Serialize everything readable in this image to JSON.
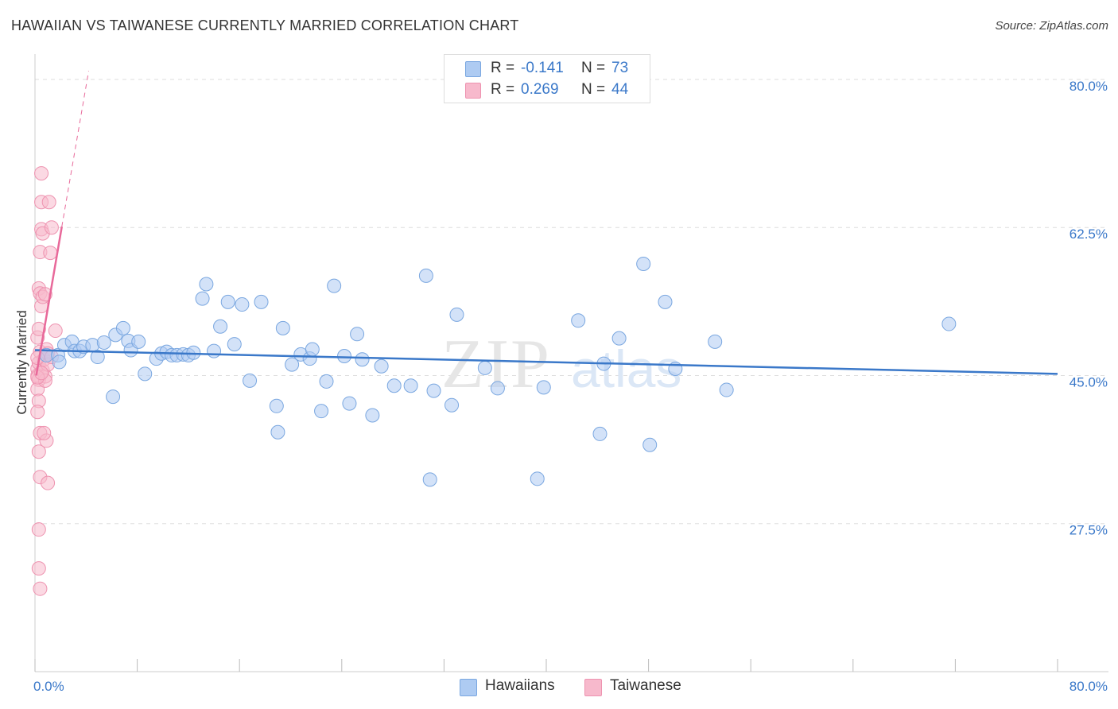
{
  "header": {
    "title": "HAWAIIAN VS TAIWANESE CURRENTLY MARRIED CORRELATION CHART",
    "source": "Source: ZipAtlas.com"
  },
  "watermark": {
    "zip": "ZIP",
    "atlas": "atlas"
  },
  "legend": {
    "r_label": "R =",
    "n_label": "N =",
    "series": [
      {
        "name": "Hawaiians",
        "r": "-0.141",
        "n": "73",
        "fill": "#aecbf2",
        "stroke": "#7aa7e0"
      },
      {
        "name": "Taiwanese",
        "r": "0.269",
        "n": "44",
        "fill": "#f7b9cc",
        "stroke": "#ee93b0"
      }
    ]
  },
  "colors": {
    "blue_line": "#3a78c9",
    "pink_line": "#e8699a",
    "tick_label": "#3a78c9",
    "grid": "#dddddd"
  },
  "chart_data": {
    "type": "scatter",
    "title": "HAWAIIAN VS TAIWANESE CURRENTLY MARRIED CORRELATION CHART",
    "ylabel": "Currently Married",
    "xlabel": "",
    "xlim": [
      0,
      80
    ],
    "ylim": [
      10,
      83
    ],
    "x_tick_labels": [
      "0.0%",
      "80.0%"
    ],
    "y_ticks": [
      {
        "value": 80,
        "label": "80.0%"
      },
      {
        "value": 62.5,
        "label": "62.5%"
      },
      {
        "value": 45,
        "label": "45.0%"
      },
      {
        "value": 27.5,
        "label": "27.5%"
      }
    ],
    "grid": true,
    "legend_position": "top-center",
    "series": [
      {
        "name": "Hawaiians",
        "trend": [
          [
            0,
            48.0
          ],
          [
            80,
            45.2
          ]
        ],
        "points": [
          [
            0.9,
            47.4
          ],
          [
            1.8,
            47.4
          ],
          [
            1.9,
            46.6
          ],
          [
            2.3,
            48.6
          ],
          [
            2.9,
            49.0
          ],
          [
            3.1,
            47.9
          ],
          [
            3.5,
            47.9
          ],
          [
            3.8,
            48.4
          ],
          [
            4.5,
            48.6
          ],
          [
            4.9,
            47.2
          ],
          [
            5.4,
            48.9
          ],
          [
            6.1,
            42.5
          ],
          [
            6.3,
            49.8
          ],
          [
            6.9,
            50.6
          ],
          [
            7.3,
            49.1
          ],
          [
            7.5,
            48.0
          ],
          [
            8.1,
            49.0
          ],
          [
            8.6,
            45.2
          ],
          [
            9.5,
            47.0
          ],
          [
            9.9,
            47.6
          ],
          [
            10.3,
            47.8
          ],
          [
            10.7,
            47.4
          ],
          [
            11.1,
            47.4
          ],
          [
            11.6,
            47.5
          ],
          [
            12.0,
            47.4
          ],
          [
            12.4,
            47.7
          ],
          [
            13.1,
            54.1
          ],
          [
            13.4,
            55.8
          ],
          [
            14.0,
            47.9
          ],
          [
            14.5,
            50.8
          ],
          [
            15.1,
            53.7
          ],
          [
            15.6,
            48.7
          ],
          [
            16.2,
            53.4
          ],
          [
            16.8,
            44.4
          ],
          [
            17.7,
            53.7
          ],
          [
            18.9,
            41.4
          ],
          [
            19.0,
            38.3
          ],
          [
            19.4,
            50.6
          ],
          [
            20.1,
            46.3
          ],
          [
            20.8,
            47.5
          ],
          [
            21.5,
            47.0
          ],
          [
            21.7,
            48.1
          ],
          [
            22.4,
            40.8
          ],
          [
            22.8,
            44.3
          ],
          [
            23.4,
            55.6
          ],
          [
            24.2,
            47.3
          ],
          [
            24.6,
            41.7
          ],
          [
            25.2,
            49.9
          ],
          [
            25.6,
            46.9
          ],
          [
            26.4,
            40.3
          ],
          [
            27.1,
            46.1
          ],
          [
            28.1,
            43.8
          ],
          [
            29.4,
            43.8
          ],
          [
            30.6,
            56.8
          ],
          [
            30.9,
            32.7
          ],
          [
            31.2,
            43.2
          ],
          [
            32.6,
            41.5
          ],
          [
            33.0,
            52.2
          ],
          [
            35.2,
            45.9
          ],
          [
            36.2,
            43.5
          ],
          [
            39.3,
            32.8
          ],
          [
            39.8,
            43.6
          ],
          [
            42.5,
            51.5
          ],
          [
            44.2,
            38.1
          ],
          [
            44.5,
            46.4
          ],
          [
            45.7,
            49.4
          ],
          [
            47.6,
            58.2
          ],
          [
            48.1,
            36.8
          ],
          [
            49.3,
            53.7
          ],
          [
            50.1,
            45.8
          ],
          [
            53.2,
            49.0
          ],
          [
            54.1,
            43.3
          ],
          [
            71.5,
            51.1
          ]
        ]
      },
      {
        "name": "Taiwanese",
        "trend": [
          [
            0.1,
            45.0
          ],
          [
            2.1,
            62.6
          ]
        ],
        "trend_extension": [
          [
            2.1,
            62.6
          ],
          [
            4.2,
            81.0
          ]
        ],
        "points": [
          [
            0.2,
            45.8
          ],
          [
            0.2,
            45.0
          ],
          [
            0.3,
            44.5
          ],
          [
            0.2,
            43.4
          ],
          [
            0.3,
            42.0
          ],
          [
            0.2,
            40.7
          ],
          [
            0.3,
            46.5
          ],
          [
            0.4,
            47.8
          ],
          [
            0.2,
            49.5
          ],
          [
            0.3,
            50.5
          ],
          [
            0.4,
            38.2
          ],
          [
            0.3,
            36.0
          ],
          [
            0.4,
            33.0
          ],
          [
            0.3,
            26.8
          ],
          [
            0.3,
            22.2
          ],
          [
            0.4,
            19.8
          ],
          [
            0.3,
            55.3
          ],
          [
            0.4,
            54.7
          ],
          [
            0.5,
            53.2
          ],
          [
            0.4,
            59.6
          ],
          [
            0.5,
            62.3
          ],
          [
            0.6,
            61.8
          ],
          [
            0.5,
            65.5
          ],
          [
            0.5,
            68.9
          ],
          [
            0.6,
            45.6
          ],
          [
            0.7,
            46.9
          ],
          [
            0.8,
            44.9
          ],
          [
            0.6,
            54.3
          ],
          [
            0.8,
            54.6
          ],
          [
            0.9,
            37.3
          ],
          [
            0.9,
            48.1
          ],
          [
            1.0,
            47.6
          ],
          [
            1.0,
            46.3
          ],
          [
            1.1,
            65.5
          ],
          [
            1.2,
            59.5
          ],
          [
            1.3,
            62.5
          ],
          [
            1.0,
            32.3
          ],
          [
            0.8,
            44.4
          ],
          [
            1.3,
            47.2
          ],
          [
            0.2,
            44.8
          ],
          [
            0.5,
            45.3
          ],
          [
            0.7,
            38.2
          ],
          [
            1.6,
            50.3
          ],
          [
            0.2,
            47.1
          ]
        ]
      }
    ]
  }
}
